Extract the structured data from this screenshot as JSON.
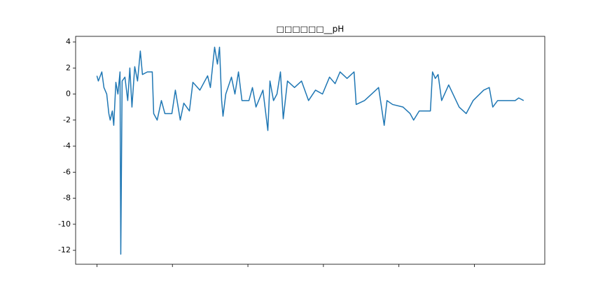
{
  "chart_data": {
    "type": "line",
    "title": "□□□□□□__pH",
    "x": [
      0,
      19,
      65,
      93,
      130,
      158,
      176,
      204,
      223,
      251,
      278,
      306,
      316,
      334,
      371,
      408,
      436,
      464,
      501,
      538,
      575,
      603,
      668,
      733,
      752,
      798,
      854,
      900,
      993,
      1039,
      1104,
      1151,
      1225,
      1271,
      1364,
      1466,
      1503,
      1559,
      1596,
      1624,
      1652,
      1670,
      1707,
      1782,
      1828,
      1875,
      1921,
      2014,
      2060,
      2107,
      2199,
      2264,
      2292,
      2339,
      2385,
      2431,
      2468,
      2524,
      2617,
      2710,
      2803,
      2895,
      2988,
      3081,
      3155,
      3220,
      3313,
      3406,
      3434,
      3545,
      3638,
      3731,
      3805,
      3842,
      3916,
      4055,
      4148,
      4195,
      4269,
      4417,
      4445,
      4482,
      4519,
      4566,
      4659,
      4798,
      4891,
      4983,
      5123,
      5197,
      5243,
      5308,
      5540,
      5587,
      5652
    ],
    "series": [
      {
        "name": "pH",
        "color": "#1f77b4",
        "values": [
          1.4,
          1,
          1.7,
          0.5,
          0,
          -1.5,
          -2,
          -1.3,
          -2.4,
          0.9,
          0,
          1.7,
          -12.3,
          1,
          1.3,
          -0.5,
          2,
          -1,
          2.1,
          1,
          3.3,
          1.5,
          1.7,
          1.7,
          -1.5,
          -2,
          -0.5,
          -1.5,
          -1.5,
          0.3,
          -2,
          -0.7,
          -1.3,
          0.9,
          0.3,
          1.4,
          0.5,
          3.6,
          2.3,
          3.6,
          -0.5,
          -1.7,
          0,
          1.3,
          0,
          1.7,
          -0.5,
          -0.5,
          0.5,
          -1,
          0.3,
          -2.8,
          1,
          -0.5,
          0,
          1.7,
          -1.9,
          1,
          0.5,
          1,
          -0.5,
          0.3,
          0,
          1.3,
          0.8,
          1.7,
          1.2,
          1.7,
          -0.8,
          -0.5,
          0,
          0.5,
          -2.4,
          -0.5,
          -0.8,
          -1,
          -1.5,
          -2,
          -1.3,
          -1.3,
          1.7,
          1.2,
          1.5,
          -0.5,
          0.7,
          -1,
          -1.5,
          -0.5,
          0.3,
          0.5,
          -1,
          -0.5,
          -0.5,
          -0.3,
          -0.5
        ]
      }
    ],
    "xlim": [
      -282,
      5932
    ],
    "xticks": [
      0,
      1000,
      2000,
      3000,
      4000,
      5000
    ],
    "ylim": [
      -13.07,
      4.43
    ],
    "yticks": [
      4,
      2,
      0,
      -2,
      -4,
      -6,
      -8,
      -10,
      -12
    ]
  }
}
